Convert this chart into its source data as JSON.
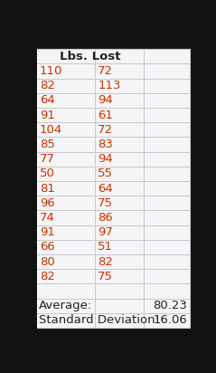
{
  "header_text": "Lbs. Lost",
  "col1": [
    "110",
    "82",
    "64",
    "91",
    "104",
    "85",
    "77",
    "50",
    "81",
    "96",
    "74",
    "91",
    "66",
    "80",
    "82"
  ],
  "col2": [
    "72",
    "113",
    "94",
    "61",
    "72",
    "83",
    "94",
    "55",
    "64",
    "75",
    "86",
    "97",
    "51",
    "82",
    "75"
  ],
  "summary_rows": [
    [
      "Average:",
      "",
      "80.23"
    ],
    [
      "Standard Deviation:",
      "",
      "16.06"
    ]
  ],
  "bg_color": "#111111",
  "table_bg": "#f5f5f8",
  "header_bg": "#f5f5f8",
  "data_text_color": "#cc3300",
  "summary_text_color": "#222222",
  "header_text_color": "#222222",
  "border_color": "#c8c8cc",
  "font_size": 9.5,
  "header_font_size": 9.5
}
